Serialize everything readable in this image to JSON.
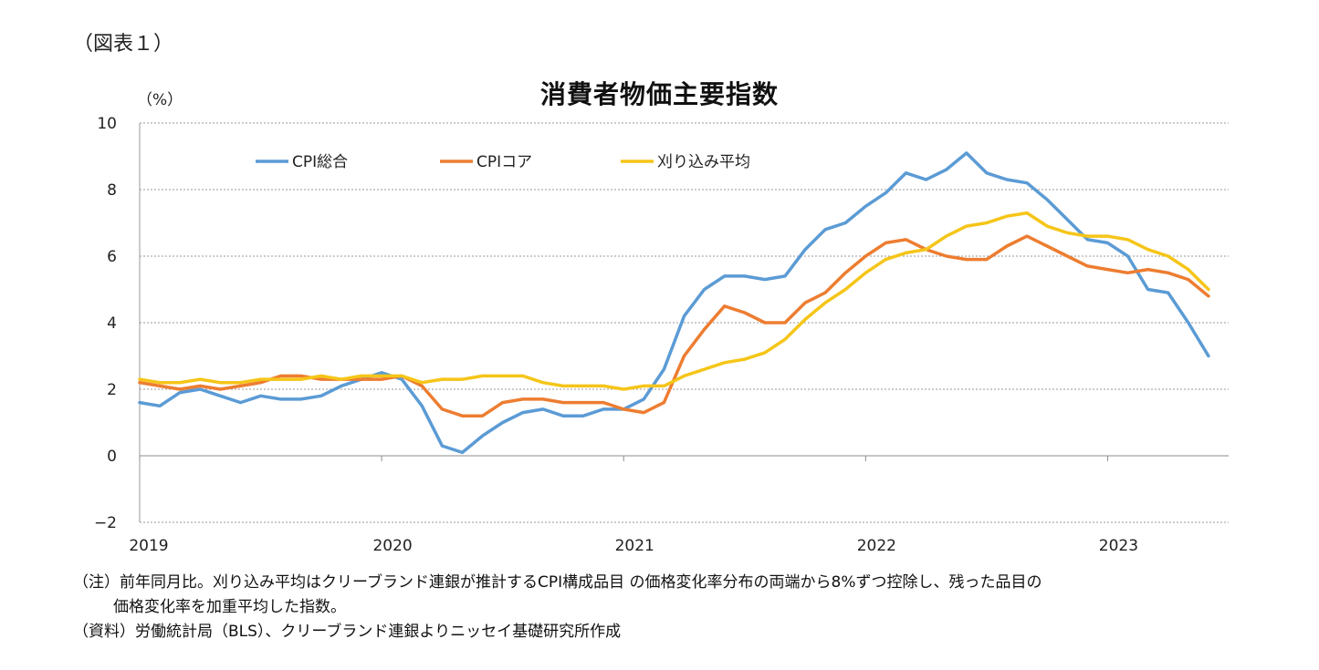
{
  "figure_label": "（図表１）",
  "notes": {
    "line1": "（注）前年同月比。刈り込み平均はクリーブランド連銀が推計するCPI構成品目 の価格変化率分布の両端から8%ずつ控除し、残った品目の",
    "line2": "価格変化率を加重平均した指数。",
    "line3": "（資料）労働統計局（BLS）、クリーブランド連銀よりニッセイ基礎研究所作成"
  },
  "chart_data": {
    "type": "line",
    "title": "消費者物価主要指数",
    "ylabel": "（%）",
    "xlabel": "",
    "ylim": [
      -2,
      10
    ],
    "yticks": [
      -2,
      0,
      2,
      4,
      6,
      8,
      10
    ],
    "grid": true,
    "legend_position": "top-left",
    "x_start": "2019-01",
    "x_ticks": [
      "2019",
      "2020",
      "2021",
      "2022",
      "2023"
    ],
    "series": [
      {
        "name": "CPI総合",
        "color": "#5b9bd5",
        "values": [
          1.6,
          1.5,
          1.9,
          2.0,
          1.8,
          1.6,
          1.8,
          1.7,
          1.7,
          1.8,
          2.1,
          2.3,
          2.5,
          2.3,
          1.5,
          0.3,
          0.1,
          0.6,
          1.0,
          1.3,
          1.4,
          1.2,
          1.2,
          1.4,
          1.4,
          1.7,
          2.6,
          4.2,
          5.0,
          5.4,
          5.4,
          5.3,
          5.4,
          6.2,
          6.8,
          7.0,
          7.5,
          7.9,
          8.5,
          8.3,
          8.6,
          9.1,
          8.5,
          8.3,
          8.2,
          7.7,
          7.1,
          6.5,
          6.4,
          6.0,
          5.0,
          4.9,
          4.0,
          3.0
        ]
      },
      {
        "name": "CPIコア",
        "color": "#ed7d31",
        "values": [
          2.2,
          2.1,
          2.0,
          2.1,
          2.0,
          2.1,
          2.2,
          2.4,
          2.4,
          2.3,
          2.3,
          2.3,
          2.3,
          2.4,
          2.1,
          1.4,
          1.2,
          1.2,
          1.6,
          1.7,
          1.7,
          1.6,
          1.6,
          1.6,
          1.4,
          1.3,
          1.6,
          3.0,
          3.8,
          4.5,
          4.3,
          4.0,
          4.0,
          4.6,
          4.9,
          5.5,
          6.0,
          6.4,
          6.5,
          6.2,
          6.0,
          5.9,
          5.9,
          6.3,
          6.6,
          6.3,
          6.0,
          5.7,
          5.6,
          5.5,
          5.6,
          5.5,
          5.3,
          4.8
        ]
      },
      {
        "name": "刈り込み平均",
        "color": "#f5c518",
        "values": [
          2.3,
          2.2,
          2.2,
          2.3,
          2.2,
          2.2,
          2.3,
          2.3,
          2.3,
          2.4,
          2.3,
          2.4,
          2.4,
          2.4,
          2.2,
          2.3,
          2.3,
          2.4,
          2.4,
          2.4,
          2.2,
          2.1,
          2.1,
          2.1,
          2.0,
          2.1,
          2.1,
          2.4,
          2.6,
          2.8,
          2.9,
          3.1,
          3.5,
          4.1,
          4.6,
          5.0,
          5.5,
          5.9,
          6.1,
          6.2,
          6.6,
          6.9,
          7.0,
          7.2,
          7.3,
          6.9,
          6.7,
          6.6,
          6.6,
          6.5,
          6.2,
          6.0,
          5.6,
          5.0
        ]
      }
    ]
  }
}
